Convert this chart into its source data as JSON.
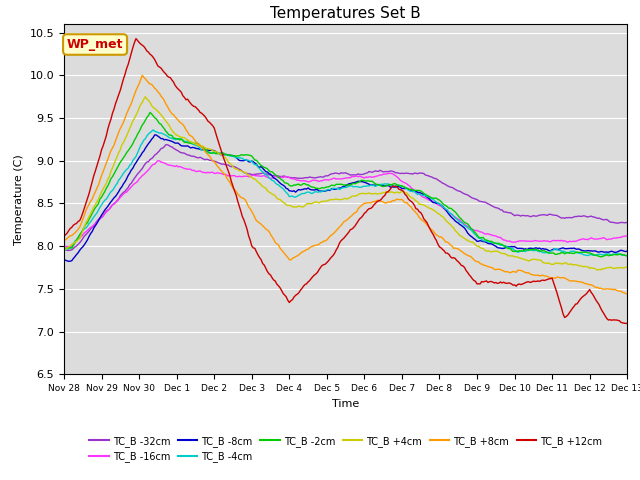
{
  "title": "Temperatures Set B",
  "xlabel": "Time",
  "ylabel": "Temperature (C)",
  "ylim": [
    6.5,
    10.6
  ],
  "xlim": [
    0,
    360
  ],
  "bg_color": "#dcdcdc",
  "fig_color": "#ffffff",
  "x_tick_labels": [
    "Nov 28",
    "Nov 29",
    "Nov 30",
    "Dec 1",
    "Dec 2",
    "Dec 3",
    "Dec 4",
    "Dec 5",
    "Dec 6",
    "Dec 7",
    "Dec 8",
    "Dec 9",
    "Dec 10",
    "Dec 11",
    "Dec 12",
    "Dec 13"
  ],
  "x_tick_positions": [
    0,
    24,
    48,
    72,
    96,
    120,
    144,
    168,
    192,
    216,
    240,
    264,
    288,
    312,
    336,
    360
  ],
  "series": [
    {
      "label": "TC_B -32cm",
      "color": "#9933cc"
    },
    {
      "label": "TC_B -16cm",
      "color": "#ff33ff"
    },
    {
      "label": "TC_B -8cm",
      "color": "#0000cc"
    },
    {
      "label": "TC_B -4cm",
      "color": "#00cccc"
    },
    {
      "label": "TC_B -2cm",
      "color": "#00cc00"
    },
    {
      "label": "TC_B +4cm",
      "color": "#cccc00"
    },
    {
      "label": "TC_B +8cm",
      "color": "#ff9900"
    },
    {
      "label": "TC_B +12cm",
      "color": "#cc0000"
    }
  ],
  "wp_met_label": "WP_met",
  "wp_met_bg": "#ffffcc",
  "wp_met_edge": "#cc9900"
}
